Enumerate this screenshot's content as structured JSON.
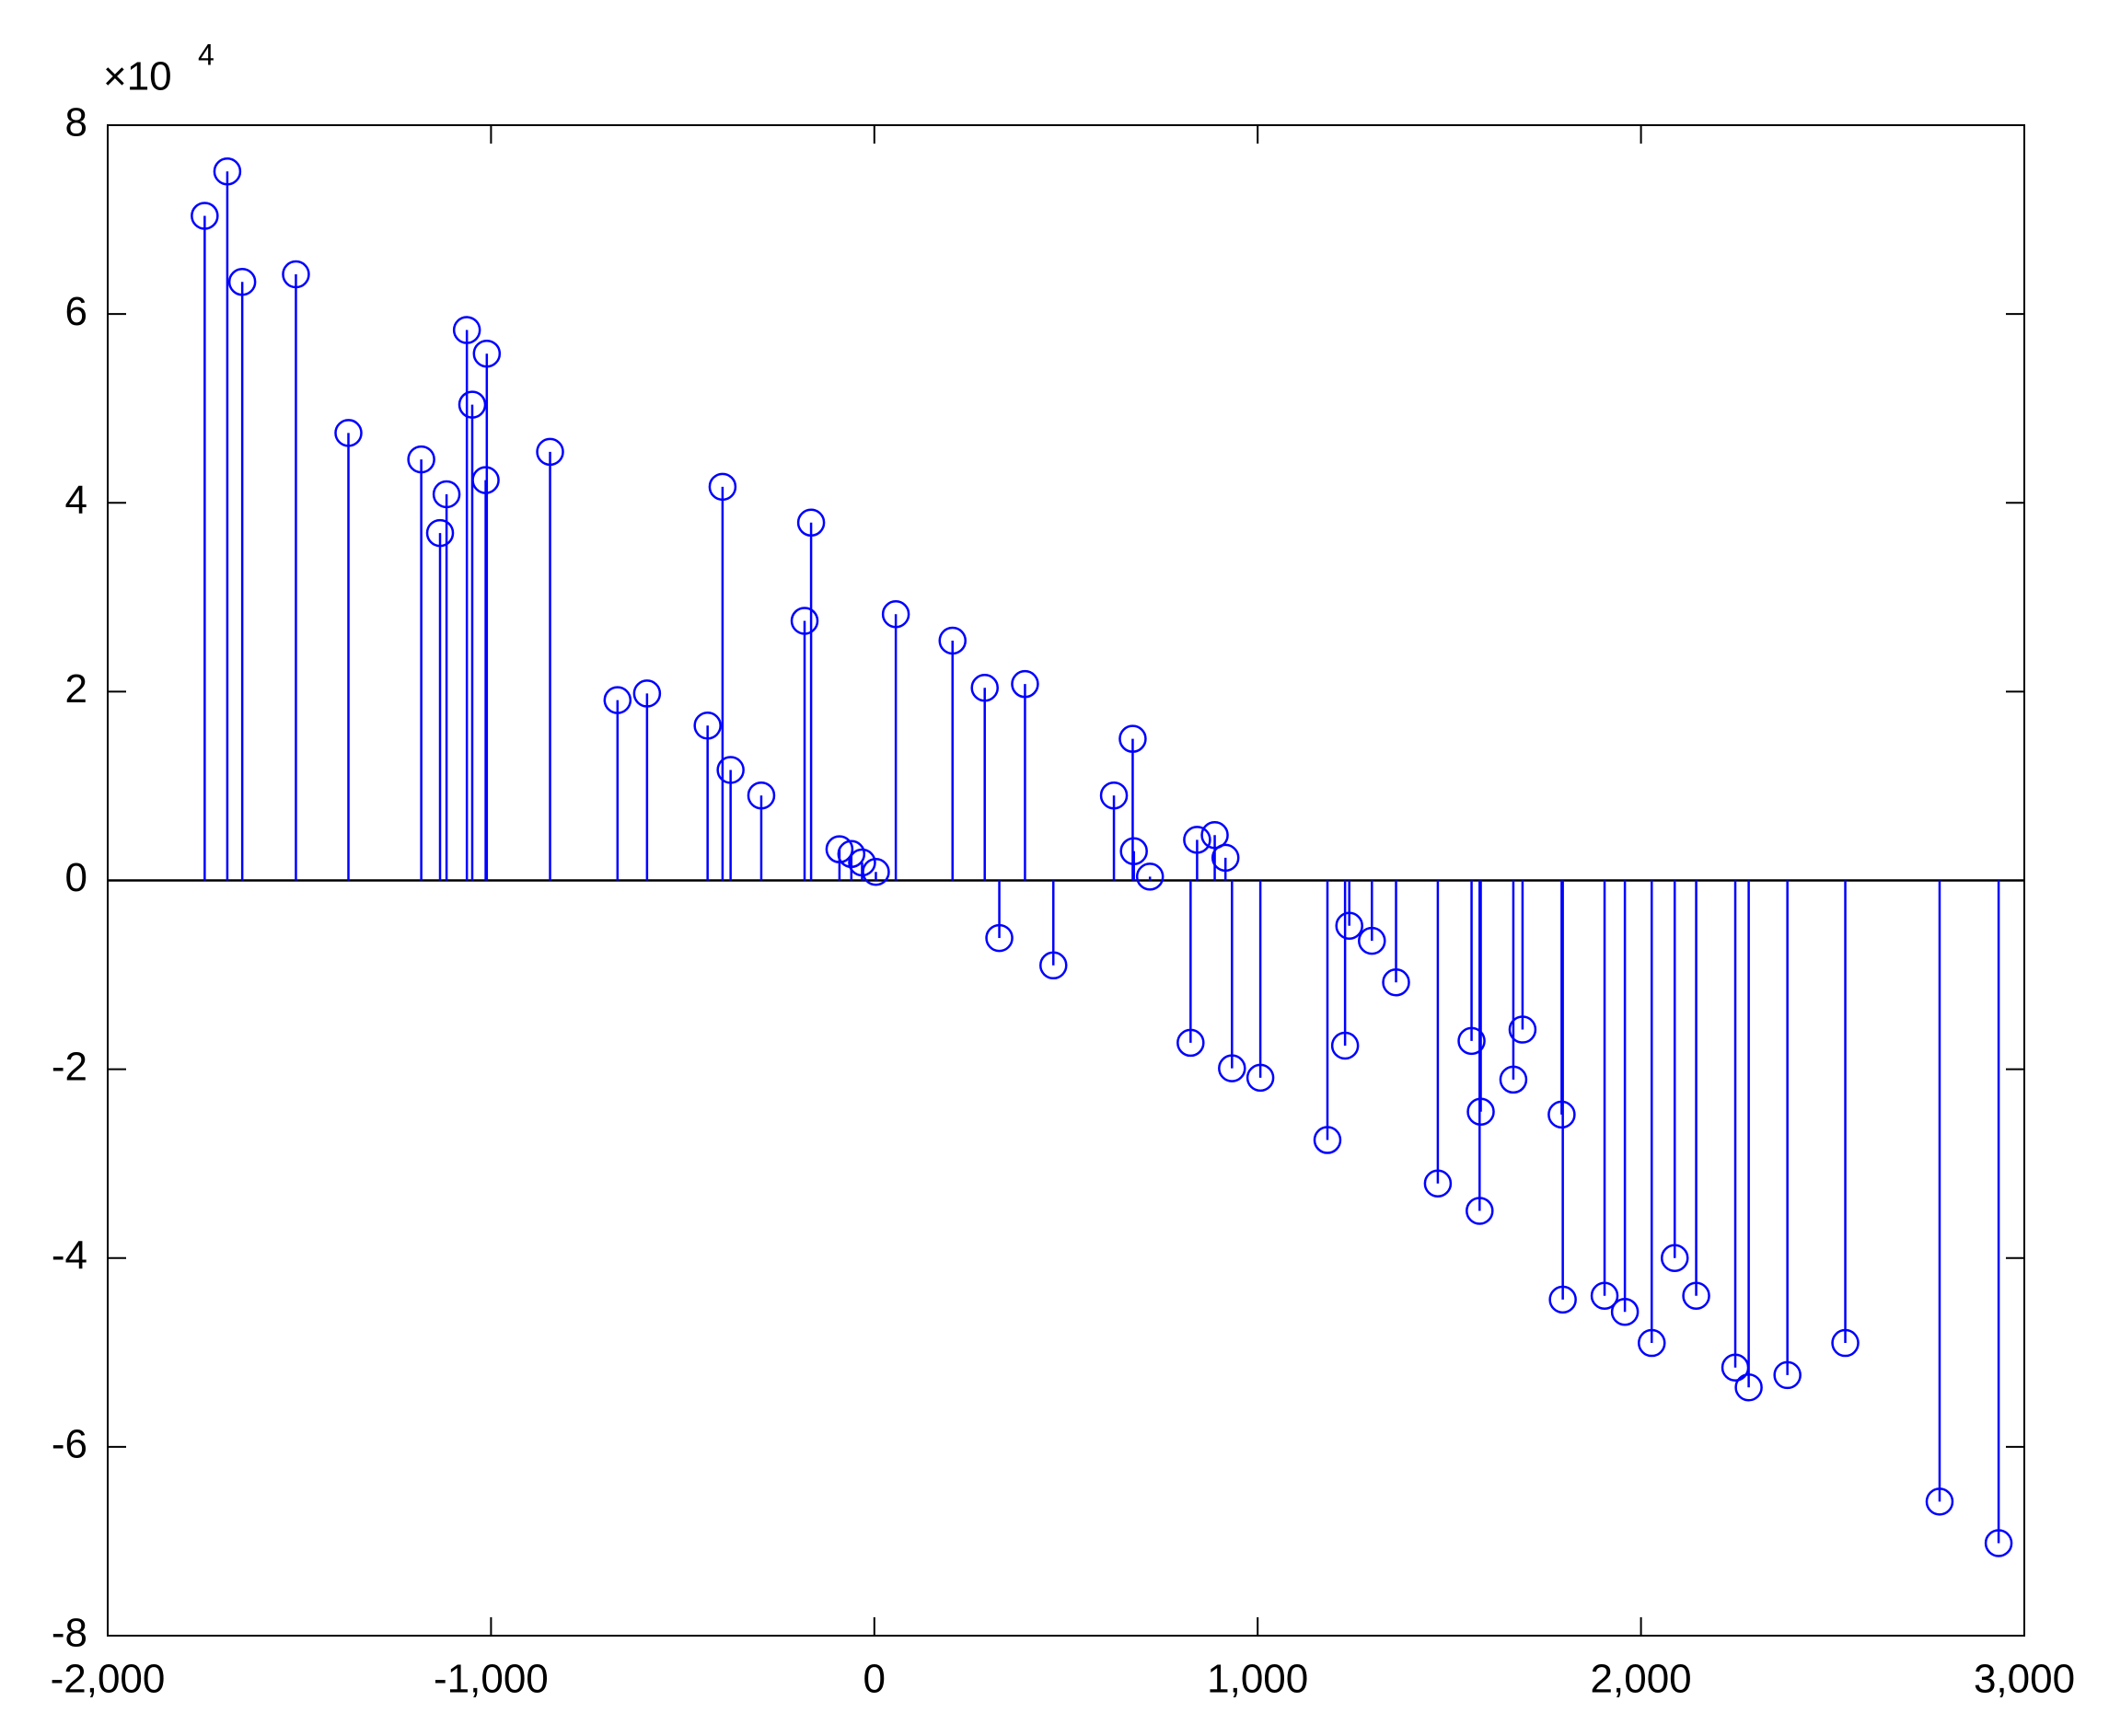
{
  "chart_data": {
    "type": "stem",
    "annotation": {
      "base": "×10",
      "exponent": "4"
    },
    "color": "#0000ff",
    "x": [
      -1747,
      -1688,
      -1649,
      -1509,
      -1372,
      -1182,
      -1133,
      -1116,
      -1063,
      -1049,
      -1011,
      -1014,
      -846,
      -670,
      -593,
      -435,
      -396,
      -375,
      -295,
      -182,
      -165,
      -91,
      -60,
      -32,
      4,
      56,
      204,
      288,
      326,
      393,
      467,
      625,
      674,
      677,
      719,
      825,
      842,
      888,
      916,
      933,
      1007,
      1182,
      1228,
      1239,
      1298,
      1361,
      1470,
      1558,
      1579,
      1582,
      1667,
      1691,
      1793,
      1796,
      1905,
      1958,
      2028,
      2088,
      2144,
      2246,
      2281,
      2382,
      2533,
      2779,
      2933
    ],
    "values": [
      70400,
      75100,
      63400,
      64200,
      47400,
      44600,
      36800,
      40900,
      58300,
      50400,
      55800,
      42400,
      45400,
      19100,
      19800,
      16400,
      41700,
      11700,
      9000,
      27500,
      37900,
      3300,
      2800,
      1900,
      900,
      28200,
      25400,
      20400,
      -6100,
      20800,
      -9000,
      9000,
      15000,
      3100,
      400,
      -17200,
      4300,
      4800,
      2400,
      -19900,
      -20900,
      -27500,
      -17500,
      -4800,
      -6400,
      -10800,
      -32100,
      -17000,
      -35000,
      -24500,
      -21100,
      -15800,
      -24800,
      -44400,
      -44000,
      -45700,
      -49000,
      -40000,
      -44000,
      -51600,
      -53700,
      -52400,
      -49000,
      -65800,
      -70200
    ],
    "xlim": [
      -2000,
      3000
    ],
    "xticks": [
      {
        "value": -2000,
        "label": "-2,000"
      },
      {
        "value": -1000,
        "label": "-1,000"
      },
      0,
      {
        "value": 1000,
        "label": "1,000"
      },
      {
        "value": 2000,
        "label": "2,000"
      },
      {
        "value": 3000,
        "label": "3,000"
      }
    ],
    "ylim": [
      -80000,
      80000
    ],
    "yticks": [
      {
        "value": -80000,
        "label": "-8"
      },
      {
        "value": -60000,
        "label": "-6"
      },
      {
        "value": -40000,
        "label": "-4"
      },
      {
        "value": -20000,
        "label": "-2"
      },
      0,
      {
        "value": 20000,
        "label": "2"
      },
      {
        "value": 40000,
        "label": "4"
      },
      {
        "value": 60000,
        "label": "6"
      },
      {
        "value": 80000,
        "label": "8"
      }
    ]
  }
}
